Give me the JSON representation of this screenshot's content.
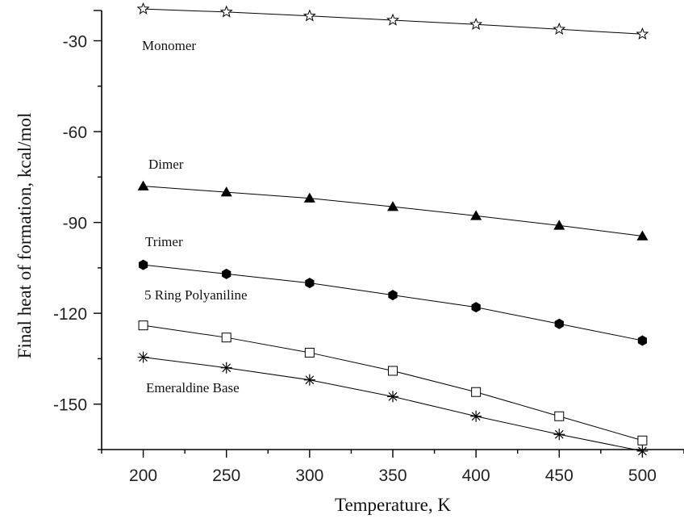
{
  "chart_data": {
    "type": "line",
    "title": "",
    "xlabel": "Temperature, K",
    "ylabel": "Final heat of formation, kcal/mol",
    "xlim": [
      175,
      525
    ],
    "ylim": [
      -165,
      -20
    ],
    "x_ticks": [
      200,
      250,
      300,
      350,
      400,
      450,
      500
    ],
    "x_tick_labels": [
      "200",
      "250",
      "300",
      "350",
      "400",
      "450",
      "500"
    ],
    "y_ticks": [
      -30,
      -60,
      -90,
      -120,
      -150
    ],
    "y_tick_labels": [
      "-30",
      "-60",
      "-90",
      "-120",
      "-150"
    ],
    "grid": false,
    "legend": "none",
    "x": [
      200,
      250,
      300,
      350,
      400,
      450,
      500
    ],
    "series": [
      {
        "name": "Monomer",
        "marker": "open-star",
        "values": [
          -19.5,
          -20.5,
          -21.8,
          -23.2,
          -24.6,
          -26.2,
          -27.8
        ]
      },
      {
        "name": "Dimer",
        "marker": "filled-triangle",
        "values": [
          -78,
          -80,
          -82,
          -84.8,
          -87.8,
          -91,
          -94.5
        ]
      },
      {
        "name": "Trimer",
        "marker": "filled-hexagon",
        "values": [
          -104,
          -107,
          -110,
          -114,
          -118,
          -123.5,
          -129
        ]
      },
      {
        "name": "5 Ring Polyaniline",
        "marker": "open-square",
        "values": [
          -124,
          -128,
          -133,
          -139,
          -146,
          -154,
          -162
        ]
      },
      {
        "name": "Emeraldine Base",
        "marker": "asterisk",
        "values": [
          -134.5,
          -138,
          -142,
          -147.5,
          -154,
          -160,
          -165.5
        ]
      }
    ],
    "series_labels": [
      {
        "text": "Monomer",
        "series": "Monomer"
      },
      {
        "text": "Dimer",
        "series": "Dimer"
      },
      {
        "text": "Trimer",
        "series": "Trimer"
      },
      {
        "text": "5 Ring Polyaniline",
        "series": "5 Ring Polyaniline"
      },
      {
        "text": "Emeraldine Base",
        "series": "Emeraldine Base"
      }
    ]
  }
}
